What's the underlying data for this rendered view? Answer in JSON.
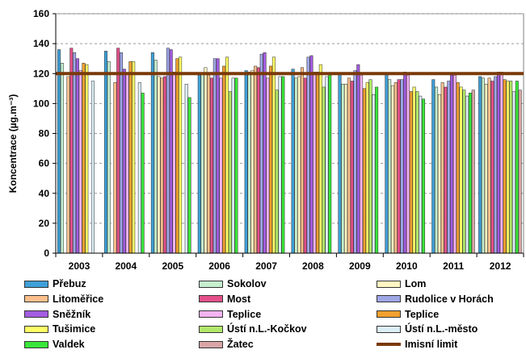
{
  "chart_data": {
    "type": "bar",
    "title": "",
    "xlabel": "",
    "ylabel": "Koncentrace (µg.m⁻³)",
    "ylim": [
      0,
      160
    ],
    "yticks": [
      "0",
      "20",
      "40",
      "60",
      "80",
      "100",
      "120",
      "140",
      "160"
    ],
    "grid": "horizontal-dashed",
    "categories": [
      "2003",
      "2004",
      "2005",
      "2006",
      "2007",
      "2008",
      "2009",
      "2010",
      "2011",
      "2012"
    ],
    "series": [
      {
        "name": "Přebuz",
        "color": "#3fa0d8",
        "values": [
          136,
          135,
          134,
          119,
          122,
          123,
          120,
          120,
          116,
          118
        ]
      },
      {
        "name": "Sokolov",
        "color": "#c6efce",
        "values": [
          127,
          128,
          129,
          120,
          121,
          117,
          113,
          116,
          111,
          117
        ]
      },
      {
        "name": "Lom",
        "color": "#fff6c2",
        "values": [
          null,
          null,
          118,
          124,
          122,
          118,
          113,
          112,
          106,
          113
        ]
      },
      {
        "name": "Litoměřice",
        "color": "#fbbf8c",
        "values": [
          118,
          114,
          117,
          119,
          125,
          124,
          117,
          114,
          114,
          117
        ]
      },
      {
        "name": "Most",
        "color": "#e4508a",
        "values": [
          137,
          137,
          118,
          117,
          124,
          117,
          115,
          116,
          111,
          115
        ]
      },
      {
        "name": "Rudolice v Horách",
        "color": "#9fa6e6",
        "values": [
          134,
          134,
          137,
          130,
          133,
          131,
          122,
          116,
          115,
          118
        ]
      },
      {
        "name": "Sněžník",
        "color": "#a35ce0",
        "values": [
          130,
          123,
          136,
          130,
          134,
          132,
          126,
          121,
          119,
          121
        ]
      },
      {
        "name": "Teplice",
        "color": "#f6b3f2",
        "values": [
          122,
          120,
          121,
          117,
          117,
          121,
          119,
          119,
          119,
          121
        ]
      },
      {
        "name": "Teplice",
        "color": "#f0a02e",
        "values": [
          127,
          128,
          130,
          125,
          125,
          121,
          110,
          108,
          114,
          116
        ]
      },
      {
        "name": "Tušimice",
        "color": "#ffff66",
        "values": [
          126,
          128,
          131,
          131,
          131,
          126,
          114,
          111,
          111,
          115
        ]
      },
      {
        "name": "Ústí n.L.-Kočkov",
        "color": "#b2e86a",
        "values": [
          null,
          null,
          null,
          108,
          109,
          111,
          116,
          108,
          109,
          115
        ]
      },
      {
        "name": "Ústí n.L.-město",
        "color": "#dceef6",
        "values": [
          115,
          114,
          113,
          117,
          118,
          118,
          106,
          105,
          105,
          108
        ]
      },
      {
        "name": "Valdek",
        "color": "#39e639",
        "values": [
          null,
          107,
          104,
          117,
          118,
          119,
          111,
          103,
          107,
          115
        ]
      },
      {
        "name": "Žatec",
        "color": "#d9a6a6",
        "values": [
          null,
          null,
          null,
          null,
          null,
          null,
          null,
          null,
          109,
          109
        ]
      }
    ],
    "limit": {
      "name": "Imisní limit",
      "value": 120,
      "color": "#7a3a0a"
    },
    "legend_position": "bottom"
  }
}
